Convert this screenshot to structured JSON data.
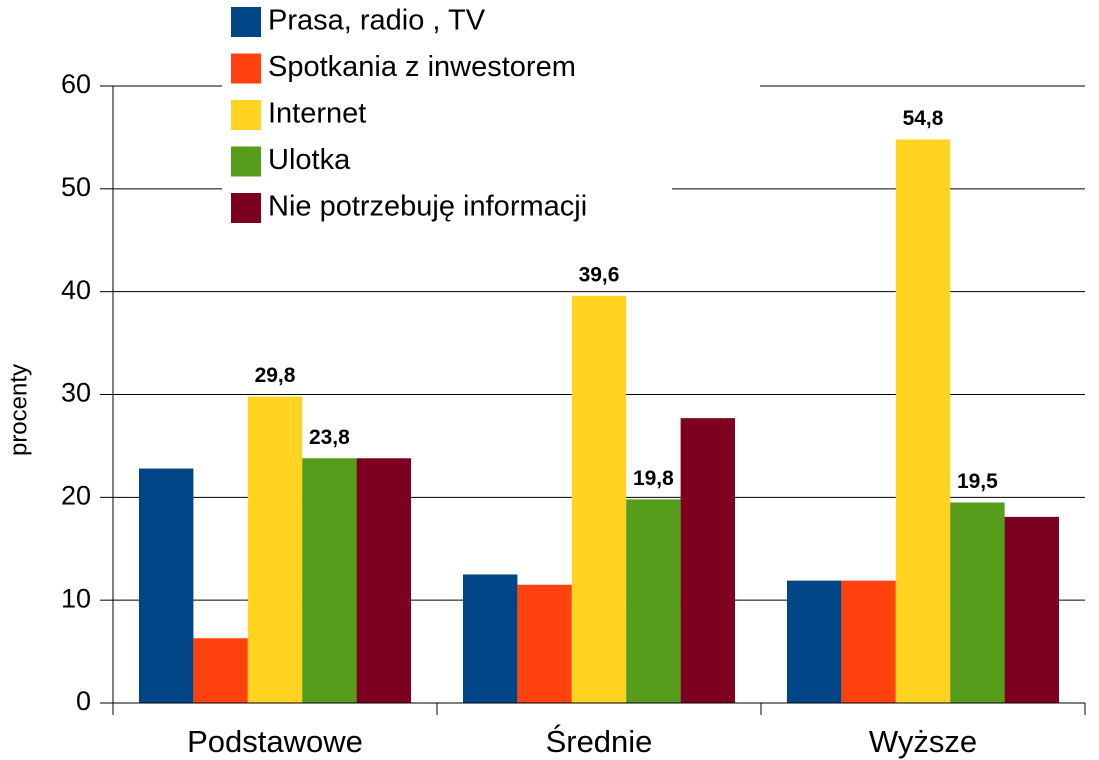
{
  "chart_data": {
    "type": "bar",
    "y_label": "procenty",
    "categories": [
      "Podstawowe",
      "Średnie",
      "Wyższe"
    ],
    "series": [
      {
        "name": "Prasa, radio , TV",
        "color": "#004586",
        "values": [
          22.8,
          12.5,
          11.9
        ]
      },
      {
        "name": "Spotkania z inwestorem",
        "color": "#ff420e",
        "values": [
          6.3,
          11.5,
          11.9
        ]
      },
      {
        "name": "Internet",
        "color": "#ffd320",
        "values": [
          29.8,
          39.6,
          54.8
        ],
        "value_labels": [
          "29,8",
          "39,6",
          "54,8"
        ]
      },
      {
        "name": "Ulotka",
        "color": "#579d1c",
        "values": [
          23.8,
          19.8,
          19.5
        ],
        "value_labels": [
          "23,8",
          "19,8",
          "19,5"
        ]
      },
      {
        "name": "Nie potrzebuję informacji",
        "color": "#7e0021",
        "values": [
          23.8,
          27.7,
          18.1
        ]
      }
    ],
    "ylim": [
      0,
      60
    ],
    "yticks": [
      0,
      10,
      20,
      30,
      40,
      50,
      60
    ],
    "grid": true
  }
}
